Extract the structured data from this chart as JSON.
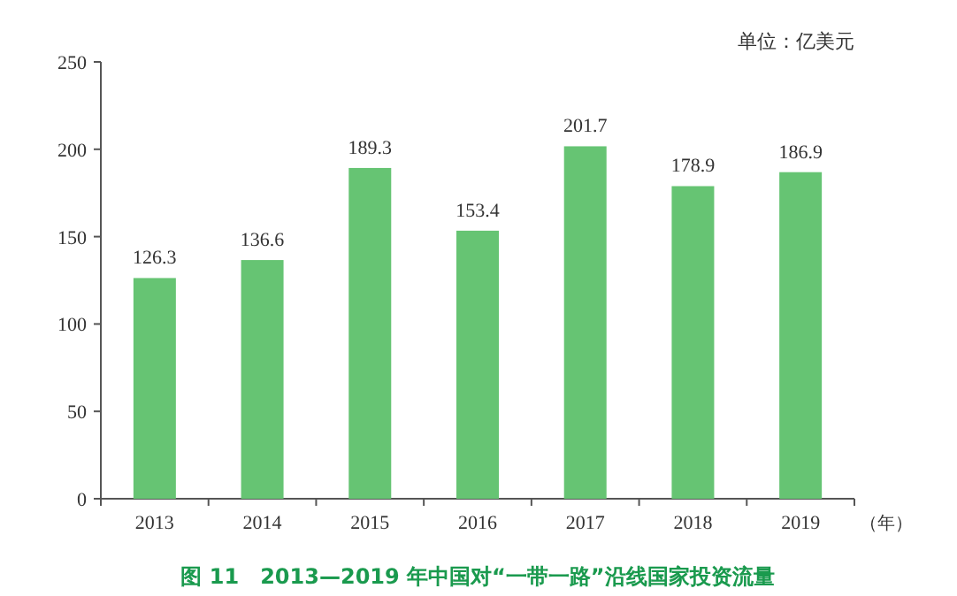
{
  "chart_data": {
    "type": "bar",
    "title": "图 11　2013—2019 年中国对“一带一路”沿线国家投资流量",
    "ylabel": "单位：亿美元",
    "xlabel": "（年）",
    "categories": [
      "2013",
      "2014",
      "2015",
      "2016",
      "2017",
      "2018",
      "2019"
    ],
    "values": [
      126.3,
      136.6,
      189.3,
      153.4,
      201.7,
      178.9,
      186.9
    ],
    "color": "#66c473",
    "data_labels": true,
    "ylim": [
      0,
      250
    ],
    "yticks": [
      0,
      50,
      100,
      150,
      200,
      250
    ]
  }
}
